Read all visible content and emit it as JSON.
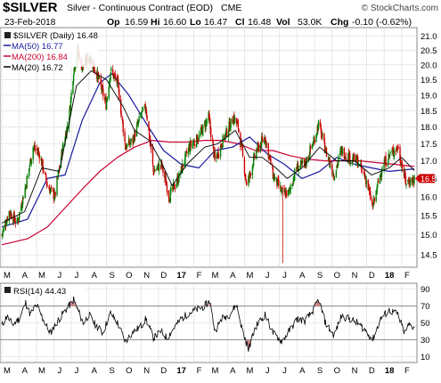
{
  "header": {
    "symbol": "$SILVER",
    "name": "Silver - Continuous Contract (EOD)",
    "exchange": "CME",
    "date": "23-Feb-2018",
    "op_label": "Op",
    "op": "16.59",
    "hi_label": "Hi",
    "hi": "16.60",
    "lo_label": "Lo",
    "lo": "16.47",
    "cl_label": "Cl",
    "cl": "16.48",
    "vol_label": "Vol",
    "vol": "53.0K",
    "chg_label": "Chg",
    "chg": "-0.10 (-0.62%)",
    "brand": "© StockCharts.com"
  },
  "legend": {
    "main": "$SILVER (Daily) 16.48",
    "ma50": "MA(50) 16.77",
    "ma200": "MA(200) 16.84",
    "ma20": "MA(20) 16.72"
  },
  "rsi_legend": "RSI(14) 44.43",
  "colors": {
    "up": "#008000",
    "down": "#cc0000",
    "ma50": "#1a1a9e",
    "ma200": "#cc0033",
    "ma20": "#000000",
    "rsi": "#000000",
    "rsi_band": "#8a8a8a",
    "rsi_extreme": "#cc8888",
    "grid": "#d8d8d8",
    "last_price_tag": "#cc0000"
  },
  "chart_data": [
    {
      "type": "candlestick",
      "title": "$SILVER Silver - Continuous Contract (EOD)",
      "ylim": [
        14.2,
        21.3
      ],
      "y_scale": "log",
      "yticks": [
        "14.5",
        "15.0",
        "15.5",
        "16.0",
        "16.5",
        "17.0",
        "17.5",
        "18.0",
        "18.5",
        "19.0",
        "19.5",
        "20.0",
        "20.5",
        "21.0"
      ],
      "last_price": "16.5",
      "x_months": [
        "M",
        "A",
        "M",
        "J",
        "J",
        "A",
        "S",
        "O",
        "N",
        "D",
        "17",
        "F",
        "M",
        "A",
        "M",
        "J",
        "J",
        "A",
        "S",
        "O",
        "N",
        "D",
        "18",
        "F"
      ],
      "x_start": "2016-03-01",
      "x_end": "2018-02-23",
      "ohlc_path": [
        [
          "2016-03-01",
          15.0
        ],
        [
          "2016-03-14",
          15.6
        ],
        [
          "2016-03-28",
          15.3
        ],
        [
          "2016-04-12",
          16.3
        ],
        [
          "2016-04-25",
          17.4
        ],
        [
          "2016-05-06",
          17.2
        ],
        [
          "2016-05-20",
          16.3
        ],
        [
          "2016-06-02",
          16.0
        ],
        [
          "2016-06-15",
          17.3
        ],
        [
          "2016-06-27",
          18.3
        ],
        [
          "2016-07-05",
          19.8
        ],
        [
          "2016-07-12",
          20.5
        ],
        [
          "2016-07-20",
          19.9
        ],
        [
          "2016-08-01",
          20.3
        ],
        [
          "2016-08-15",
          19.7
        ],
        [
          "2016-08-31",
          18.7
        ],
        [
          "2016-09-08",
          19.8
        ],
        [
          "2016-09-20",
          19.4
        ],
        [
          "2016-10-04",
          17.4
        ],
        [
          "2016-10-17",
          17.6
        ],
        [
          "2016-11-01",
          18.4
        ],
        [
          "2016-11-09",
          18.6
        ],
        [
          "2016-11-22",
          16.7
        ],
        [
          "2016-12-06",
          16.9
        ],
        [
          "2016-12-20",
          16.0
        ],
        [
          "2017-01-05",
          16.5
        ],
        [
          "2017-01-24",
          17.4
        ],
        [
          "2017-02-10",
          17.7
        ],
        [
          "2017-02-27",
          18.3
        ],
        [
          "2017-03-10",
          17.0
        ],
        [
          "2017-03-24",
          17.6
        ],
        [
          "2017-04-12",
          18.3
        ],
        [
          "2017-04-20",
          18.0
        ],
        [
          "2017-05-05",
          16.3
        ],
        [
          "2017-05-22",
          17.3
        ],
        [
          "2017-06-06",
          17.7
        ],
        [
          "2017-06-20",
          16.6
        ],
        [
          "2017-07-06",
          16.1
        ],
        [
          "2017-07-18",
          16.1
        ],
        [
          "2017-07-31",
          16.8
        ],
        [
          "2017-08-15",
          16.9
        ],
        [
          "2017-08-31",
          17.6
        ],
        [
          "2017-09-08",
          18.1
        ],
        [
          "2017-09-20",
          17.3
        ],
        [
          "2017-10-05",
          16.6
        ],
        [
          "2017-10-18",
          17.3
        ],
        [
          "2017-11-01",
          17.1
        ],
        [
          "2017-11-15",
          17.0
        ],
        [
          "2017-11-30",
          16.5
        ],
        [
          "2017-12-12",
          15.7
        ],
        [
          "2017-12-28",
          16.8
        ],
        [
          "2018-01-12",
          17.2
        ],
        [
          "2018-01-25",
          17.4
        ],
        [
          "2018-02-08",
          16.4
        ],
        [
          "2018-02-23",
          16.48
        ]
      ],
      "spikes": [
        {
          "date": "2017-07-07",
          "low": 14.3
        }
      ],
      "ma50_path": [
        [
          "2016-03-01",
          15.2
        ],
        [
          "2016-04-15",
          15.4
        ],
        [
          "2016-05-20",
          16.5
        ],
        [
          "2016-06-20",
          16.6
        ],
        [
          "2016-07-20",
          18.2
        ],
        [
          "2016-08-20",
          19.4
        ],
        [
          "2016-09-10",
          19.7
        ],
        [
          "2016-10-10",
          19.0
        ],
        [
          "2016-11-10",
          18.1
        ],
        [
          "2016-12-10",
          17.3
        ],
        [
          "2017-01-10",
          16.9
        ],
        [
          "2017-02-10",
          16.8
        ],
        [
          "2017-03-10",
          17.3
        ],
        [
          "2017-04-10",
          17.4
        ],
        [
          "2017-05-10",
          17.7
        ],
        [
          "2017-06-10",
          17.2
        ],
        [
          "2017-07-10",
          16.9
        ],
        [
          "2017-08-10",
          16.5
        ],
        [
          "2017-09-10",
          16.7
        ],
        [
          "2017-10-10",
          17.1
        ],
        [
          "2017-11-10",
          16.9
        ],
        [
          "2017-12-10",
          16.8
        ],
        [
          "2018-01-10",
          16.7
        ],
        [
          "2018-02-23",
          16.77
        ]
      ],
      "ma200_path": [
        [
          "2016-03-01",
          14.75
        ],
        [
          "2016-04-15",
          14.9
        ],
        [
          "2016-05-20",
          15.2
        ],
        [
          "2016-06-20",
          15.7
        ],
        [
          "2016-07-20",
          16.2
        ],
        [
          "2016-08-20",
          16.7
        ],
        [
          "2016-09-20",
          17.1
        ],
        [
          "2016-10-20",
          17.4
        ],
        [
          "2016-11-20",
          17.6
        ],
        [
          "2016-12-20",
          17.55
        ],
        [
          "2017-01-20",
          17.55
        ],
        [
          "2017-02-20",
          17.6
        ],
        [
          "2017-03-20",
          17.6
        ],
        [
          "2017-04-20",
          17.5
        ],
        [
          "2017-05-20",
          17.3
        ],
        [
          "2017-06-20",
          17.3
        ],
        [
          "2017-07-20",
          17.15
        ],
        [
          "2017-08-20",
          17.05
        ],
        [
          "2017-09-20",
          17.0
        ],
        [
          "2017-10-20",
          17.0
        ],
        [
          "2017-11-20",
          17.0
        ],
        [
          "2017-12-20",
          16.95
        ],
        [
          "2018-01-20",
          16.9
        ],
        [
          "2018-02-23",
          16.84
        ]
      ],
      "ma20_path": [
        [
          "2016-03-01",
          15.3
        ],
        [
          "2016-04-10",
          15.6
        ],
        [
          "2016-05-10",
          16.8
        ],
        [
          "2016-06-10",
          16.7
        ],
        [
          "2016-07-10",
          19.3
        ],
        [
          "2016-08-05",
          19.8
        ],
        [
          "2016-09-01",
          19.5
        ],
        [
          "2016-10-01",
          18.6
        ],
        [
          "2016-10-20",
          17.9
        ],
        [
          "2016-11-15",
          17.6
        ],
        [
          "2016-12-05",
          17.0
        ],
        [
          "2016-12-25",
          16.3
        ],
        [
          "2017-01-20",
          16.9
        ],
        [
          "2017-02-20",
          17.4
        ],
        [
          "2017-03-15",
          17.5
        ],
        [
          "2017-04-15",
          17.9
        ],
        [
          "2017-05-10",
          17.1
        ],
        [
          "2017-06-01",
          17.1
        ],
        [
          "2017-06-25",
          16.8
        ],
        [
          "2017-07-15",
          16.5
        ],
        [
          "2017-08-10",
          16.8
        ],
        [
          "2017-09-10",
          17.4
        ],
        [
          "2017-10-10",
          17.0
        ],
        [
          "2017-11-10",
          17.0
        ],
        [
          "2017-12-10",
          16.6
        ],
        [
          "2018-01-10",
          16.8
        ],
        [
          "2018-02-01",
          17.1
        ],
        [
          "2018-02-23",
          16.72
        ]
      ]
    },
    {
      "type": "line",
      "title": "RSI(14) 44.43",
      "ylim": [
        3,
        97
      ],
      "yticks": [
        "10",
        "30",
        "50",
        "70",
        "90"
      ],
      "bands": [
        30,
        70
      ],
      "rsi_path": [
        [
          "2016-03-01",
          47
        ],
        [
          "2016-03-10",
          58
        ],
        [
          "2016-03-20",
          48
        ],
        [
          "2016-04-01",
          55
        ],
        [
          "2016-04-12",
          74
        ],
        [
          "2016-04-20",
          60
        ],
        [
          "2016-05-01",
          72
        ],
        [
          "2016-05-12",
          55
        ],
        [
          "2016-05-25",
          38
        ],
        [
          "2016-06-05",
          50
        ],
        [
          "2016-06-15",
          60
        ],
        [
          "2016-06-25",
          68
        ],
        [
          "2016-07-05",
          78
        ],
        [
          "2016-07-12",
          66
        ],
        [
          "2016-07-22",
          50
        ],
        [
          "2016-08-01",
          60
        ],
        [
          "2016-08-12",
          48
        ],
        [
          "2016-08-25",
          38
        ],
        [
          "2016-09-08",
          62
        ],
        [
          "2016-09-20",
          50
        ],
        [
          "2016-10-04",
          28
        ],
        [
          "2016-10-18",
          40
        ],
        [
          "2016-10-30",
          45
        ],
        [
          "2016-11-09",
          55
        ],
        [
          "2016-11-22",
          32
        ],
        [
          "2016-12-05",
          40
        ],
        [
          "2016-12-16",
          32
        ],
        [
          "2016-12-28",
          44
        ],
        [
          "2017-01-10",
          55
        ],
        [
          "2017-01-24",
          62
        ],
        [
          "2017-02-08",
          66
        ],
        [
          "2017-02-20",
          70
        ],
        [
          "2017-03-01",
          76
        ],
        [
          "2017-03-10",
          40
        ],
        [
          "2017-03-22",
          55
        ],
        [
          "2017-04-05",
          60
        ],
        [
          "2017-04-17",
          72
        ],
        [
          "2017-04-26",
          45
        ],
        [
          "2017-05-08",
          18
        ],
        [
          "2017-05-20",
          45
        ],
        [
          "2017-06-06",
          60
        ],
        [
          "2017-06-20",
          38
        ],
        [
          "2017-07-06",
          28
        ],
        [
          "2017-07-18",
          40
        ],
        [
          "2017-08-02",
          55
        ],
        [
          "2017-08-15",
          52
        ],
        [
          "2017-08-30",
          65
        ],
        [
          "2017-09-08",
          78
        ],
        [
          "2017-09-20",
          50
        ],
        [
          "2017-10-05",
          35
        ],
        [
          "2017-10-18",
          58
        ],
        [
          "2017-11-01",
          55
        ],
        [
          "2017-11-15",
          50
        ],
        [
          "2017-11-28",
          42
        ],
        [
          "2017-12-12",
          30
        ],
        [
          "2017-12-26",
          55
        ],
        [
          "2018-01-10",
          65
        ],
        [
          "2018-01-25",
          60
        ],
        [
          "2018-02-06",
          38
        ],
        [
          "2018-02-14",
          48
        ],
        [
          "2018-02-23",
          44.43
        ]
      ]
    }
  ]
}
